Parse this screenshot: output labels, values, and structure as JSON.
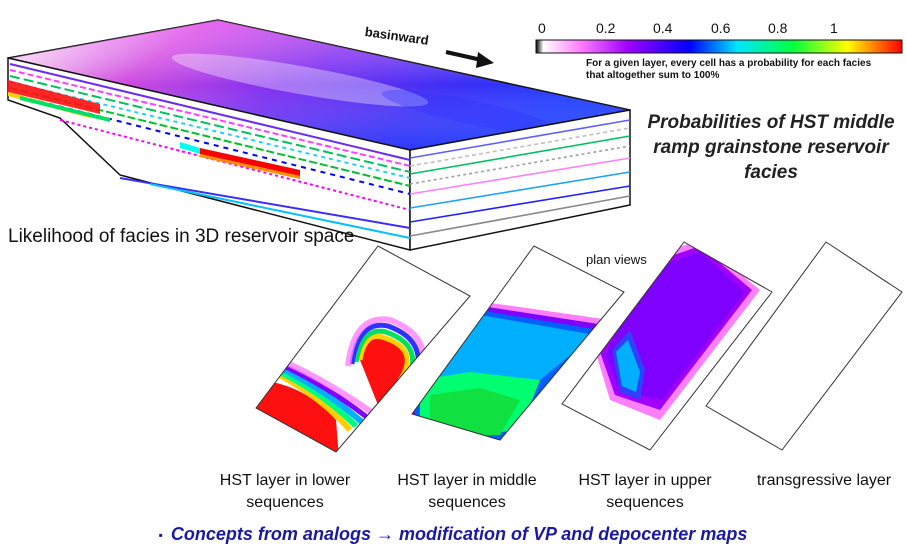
{
  "block_label": "Likelihood of facies in 3D reservoir space",
  "direction_label": "basinward",
  "colorbar": {
    "ticks": [
      "0",
      "0.2",
      "0.4",
      "0.6",
      "0.8",
      "1"
    ],
    "note": "For a given layer, every cell has a probability for each facies that altogether sum to 100%",
    "colors": [
      "#000000",
      "#ff00ff",
      "#6a00ff",
      "#0000ff",
      "#00e5ff",
      "#00ff40",
      "#ffff00",
      "#ff0000"
    ]
  },
  "title": "Probabilities of HST middle ramp grainstone reservoir facies",
  "plan_views_label": "plan views",
  "panels": [
    {
      "caption": "HST layer in lower sequences"
    },
    {
      "caption": "HST layer in middle sequences"
    },
    {
      "caption": "HST layer in upper sequences"
    },
    {
      "caption": "transgressive layer"
    }
  ],
  "bottom_text": {
    "bullet": "▪",
    "text": "Concepts from analogs → modification of VP and depocenter maps"
  }
}
